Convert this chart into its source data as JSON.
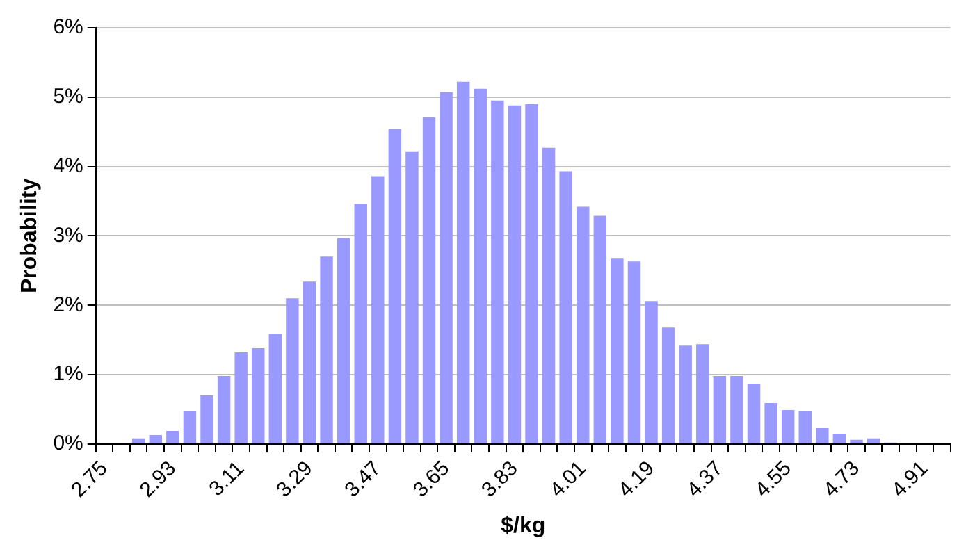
{
  "chart_data": {
    "type": "bar",
    "xlabel": "$/kg",
    "ylabel": "Probability",
    "categories": [
      "2.75",
      null,
      null,
      null,
      "2.93",
      null,
      null,
      null,
      "3.11",
      null,
      null,
      null,
      "3.29",
      null,
      null,
      null,
      "3.47",
      null,
      null,
      null,
      "3.65",
      null,
      null,
      null,
      "3.83",
      null,
      null,
      null,
      "4.01",
      null,
      null,
      null,
      "4.19",
      null,
      null,
      null,
      "4.37",
      null,
      null,
      null,
      "4.55",
      null,
      null,
      null,
      "4.73",
      null,
      null,
      null,
      "4.91",
      null
    ],
    "values": [
      0,
      0,
      0.08,
      0.13,
      0.19,
      0.47,
      0.7,
      0.98,
      1.32,
      1.38,
      1.59,
      2.1,
      2.34,
      2.7,
      2.97,
      3.46,
      3.86,
      4.54,
      4.22,
      4.71,
      5.07,
      5.22,
      5.12,
      4.95,
      4.88,
      4.9,
      4.27,
      3.93,
      3.42,
      3.29,
      2.68,
      2.63,
      2.06,
      1.68,
      1.42,
      1.44,
      0.98,
      0.98,
      0.87,
      0.59,
      0.49,
      0.47,
      0.23,
      0.15,
      0.06,
      0.08,
      0.02,
      0,
      0,
      0
    ],
    "color": "#9999ff",
    "ylim": [
      0,
      6
    ],
    "yticks": [
      {
        "value": 0,
        "label": "0%"
      },
      {
        "value": 1,
        "label": "1%"
      },
      {
        "value": 2,
        "label": "2%"
      },
      {
        "value": 3,
        "label": "3%"
      },
      {
        "value": 4,
        "label": "4%"
      },
      {
        "value": 5,
        "label": "5%"
      },
      {
        "value": 6,
        "label": "6%"
      }
    ],
    "grid": "y",
    "legend": false
  }
}
